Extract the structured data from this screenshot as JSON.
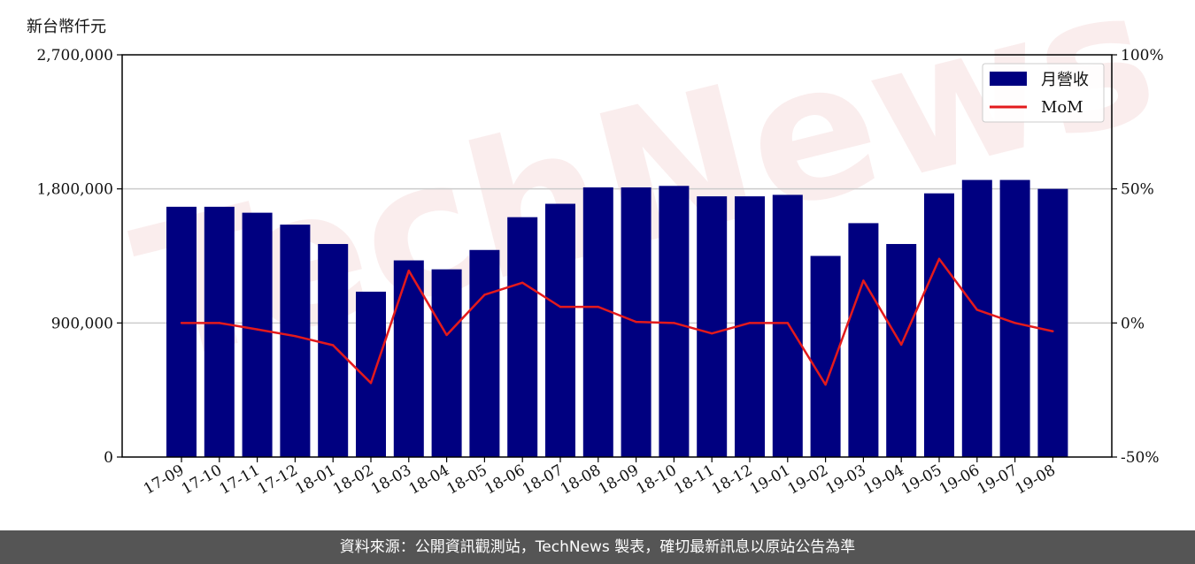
{
  "unit_label": "新台幣仟元",
  "footer_text": "資料來源：公開資訊觀測站，TechNews 製表，確切最新訊息以原站公告為準",
  "watermark_text": "TechNews",
  "colors": {
    "bar": "#000080",
    "line": "#e31a1c",
    "grid": "#cccccc",
    "footer_bg": "#555555"
  },
  "chart_data": {
    "type": "bar",
    "categories": [
      "17-09",
      "17-10",
      "17-11",
      "17-12",
      "18-01",
      "18-02",
      "18-03",
      "18-04",
      "18-05",
      "18-06",
      "18-07",
      "18-08",
      "18-09",
      "18-10",
      "18-11",
      "18-12",
      "19-01",
      "19-02",
      "19-03",
      "19-04",
      "19-05",
      "19-06",
      "19-07",
      "19-08"
    ],
    "series": [
      {
        "name": "月營收",
        "type": "bar",
        "axis": "left",
        "values": [
          1680000,
          1680000,
          1640000,
          1560000,
          1430000,
          1110000,
          1320000,
          1260000,
          1390000,
          1610000,
          1700000,
          1810000,
          1810000,
          1820000,
          1750000,
          1750000,
          1760000,
          1350000,
          1570000,
          1430000,
          1770000,
          1860000,
          1860000,
          1800000
        ]
      },
      {
        "name": "MoM",
        "type": "line",
        "axis": "right",
        "unit": "%",
        "values": [
          0.0,
          0.0,
          -2.4,
          -4.9,
          -8.3,
          -22.4,
          19.5,
          -4.5,
          10.5,
          15.0,
          6.0,
          6.0,
          0.4,
          0.0,
          -3.9,
          0.0,
          0.0,
          -23.0,
          15.8,
          -8.1,
          23.9,
          4.9,
          0.0,
          -3.1
        ]
      }
    ],
    "y_left": {
      "ylim": [
        0,
        2700000
      ],
      "ticks": [
        "0",
        "900,000",
        "1,800,000",
        "2,700,000"
      ],
      "tick_values": [
        0,
        900000,
        1800000,
        2700000
      ]
    },
    "y_right": {
      "ylim": [
        -50,
        100
      ],
      "ticks": [
        "-50%",
        "0%",
        "50%",
        "100%"
      ],
      "tick_values": [
        -50,
        0,
        50,
        100
      ]
    },
    "grid": "horizontal",
    "legend_position": "top-right"
  }
}
